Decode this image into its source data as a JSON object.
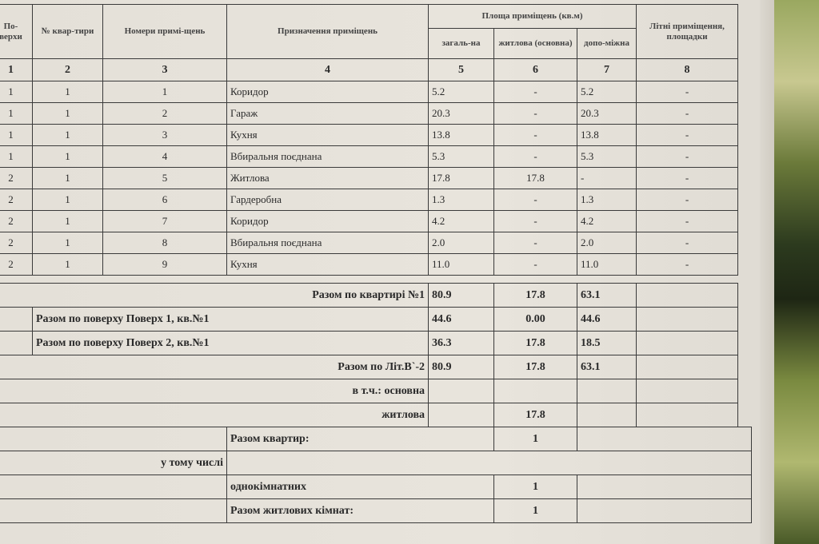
{
  "headers": {
    "floors": "По-верхи",
    "apt_no": "№ квар-тири",
    "room_no": "Номери примі-щень",
    "purpose": "Призначення приміщень",
    "area_group": "Площа приміщень (кв.м)",
    "total": "загаль-на",
    "living": "житлова (основна)",
    "aux": "допо-міжна",
    "summer": "Літні приміщення, площадки"
  },
  "column_numbers": [
    "1",
    "2",
    "3",
    "4",
    "5",
    "6",
    "7",
    "8"
  ],
  "rows": [
    {
      "floor": "1",
      "apt": "1",
      "room": "1",
      "purpose": "Коридор",
      "total": "5.2",
      "living": "-",
      "aux": "5.2",
      "summer": "-"
    },
    {
      "floor": "1",
      "apt": "1",
      "room": "2",
      "purpose": "Гараж",
      "total": "20.3",
      "living": "-",
      "aux": "20.3",
      "summer": "-"
    },
    {
      "floor": "1",
      "apt": "1",
      "room": "3",
      "purpose": "Кухня",
      "total": "13.8",
      "living": "-",
      "aux": "13.8",
      "summer": "-"
    },
    {
      "floor": "1",
      "apt": "1",
      "room": "4",
      "purpose": "Вбиральня поєднана",
      "total": "5.3",
      "living": "-",
      "aux": "5.3",
      "summer": "-"
    },
    {
      "floor": "2",
      "apt": "1",
      "room": "5",
      "purpose": "Житлова",
      "total": "17.8",
      "living": "17.8",
      "aux": "-",
      "summer": "-"
    },
    {
      "floor": "2",
      "apt": "1",
      "room": "6",
      "purpose": "Гардеробна",
      "total": "1.3",
      "living": "-",
      "aux": "1.3",
      "summer": "-"
    },
    {
      "floor": "2",
      "apt": "1",
      "room": "7",
      "purpose": "Коридор",
      "total": "4.2",
      "living": "-",
      "aux": "4.2",
      "summer": "-"
    },
    {
      "floor": "2",
      "apt": "1",
      "room": "8",
      "purpose": "Вбиральня поєднана",
      "total": "2.0",
      "living": "-",
      "aux": "2.0",
      "summer": "-"
    },
    {
      "floor": "2",
      "apt": "1",
      "room": "9",
      "purpose": "Кухня",
      "total": "11.0",
      "living": "-",
      "aux": "11.0",
      "summer": "-"
    }
  ],
  "totals": {
    "apt": {
      "label": "Разом по квартирі №1",
      "total": "80.9",
      "living": "17.8",
      "aux": "63.1"
    },
    "floor1": {
      "label": "Разом по поверху Поверх 1, кв.№1",
      "total": "44.6",
      "living": "0.00",
      "aux": "44.6"
    },
    "floor2": {
      "label": "Разом по поверху Поверх 2, кв.№1",
      "total": "36.3",
      "living": "17.8",
      "aux": "18.5"
    },
    "lit": {
      "label": "Разом по Літ.В`-2",
      "total": "80.9",
      "living": "17.8",
      "aux": "63.1"
    },
    "incl_main": {
      "label": "в т.ч.: основна"
    },
    "incl_living": {
      "label": "житлова",
      "living": "17.8"
    }
  },
  "summary": {
    "apartments_label": "Разом квартир:",
    "apartments": "1",
    "including_label": "у тому числі",
    "one_room_label": "однокімнатних",
    "one_room": "1",
    "living_rooms_label": "Разом житлових кімнат:",
    "living_rooms": "1"
  }
}
